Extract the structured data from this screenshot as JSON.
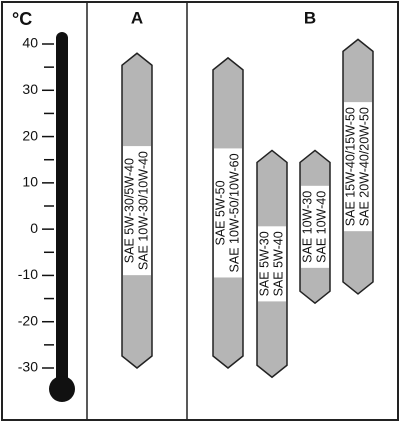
{
  "thermometer": {
    "unit": "°C",
    "ylim": [
      -30,
      40
    ],
    "yticks": [
      -30,
      -20,
      -10,
      0,
      10,
      20,
      30,
      40
    ]
  },
  "groups": [
    {
      "label": "A",
      "bars": [
        {
          "lines": [
            "SAE 5W-30/5W-40",
            "SAE 10W-30/10W-40"
          ],
          "range": [
            -30,
            38
          ]
        }
      ]
    },
    {
      "label": "B",
      "bars": [
        {
          "lines": [
            "SAE 5W-50",
            "SAE 10W-50/10W-60"
          ],
          "range": [
            -30,
            37
          ]
        },
        {
          "lines": [
            "SAE 5W-30",
            "SAE 5W-40"
          ],
          "range": [
            -32,
            17
          ]
        },
        {
          "lines": [
            "SAE 10W-30",
            "SAE 10W-40"
          ],
          "range": [
            -16,
            17
          ]
        },
        {
          "lines": [
            "SAE 15W-40/15W-50",
            "SAE 20W-40/20W-50"
          ],
          "range": [
            -14,
            41
          ]
        }
      ]
    }
  ]
}
